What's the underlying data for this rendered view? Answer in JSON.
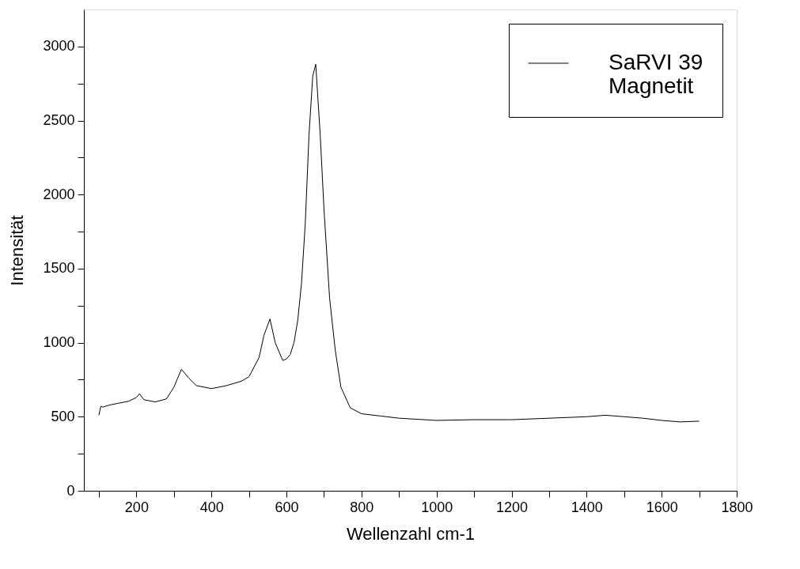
{
  "chart_data": {
    "type": "line",
    "xlabel": "Wellenzahl cm-1",
    "ylabel": "Intensität",
    "x": [
      100,
      105,
      110,
      130,
      150,
      180,
      200,
      208,
      220,
      250,
      280,
      300,
      320,
      340,
      360,
      400,
      440,
      480,
      500,
      527,
      540,
      556,
      570,
      590,
      600,
      610,
      620,
      630,
      640,
      650,
      660,
      670,
      678,
      690,
      700,
      715,
      730,
      745,
      770,
      800,
      850,
      900,
      1000,
      1100,
      1200,
      1300,
      1400,
      1450,
      1500,
      1550,
      1600,
      1650,
      1700
    ],
    "series": [
      {
        "name": "SaRVI 39\nMagnetit",
        "color": "#000000",
        "values": [
          510,
          570,
          565,
          580,
          590,
          605,
          630,
          655,
          615,
          600,
          620,
          700,
          820,
          760,
          710,
          690,
          710,
          740,
          770,
          900,
          1050,
          1160,
          1000,
          880,
          890,
          920,
          1000,
          1150,
          1400,
          1800,
          2400,
          2800,
          2880,
          2400,
          1900,
          1300,
          950,
          700,
          560,
          520,
          505,
          490,
          475,
          480,
          480,
          490,
          500,
          510,
          500,
          490,
          475,
          465,
          470
        ]
      }
    ],
    "xlim": [
      60,
      1800
    ],
    "xticks": [
      {
        "value": 100,
        "label": null
      },
      200,
      {
        "value": 300,
        "label": null
      },
      400,
      {
        "value": 500,
        "label": null
      },
      600,
      {
        "value": 700,
        "label": null
      },
      800,
      {
        "value": 900,
        "label": null
      },
      1000,
      {
        "value": 1100,
        "label": null
      },
      1200,
      {
        "value": 1300,
        "label": null
      },
      1400,
      {
        "value": 1500,
        "label": null
      },
      1600,
      {
        "value": 1700,
        "label": null
      },
      1800
    ],
    "ylim": [
      0,
      3250
    ],
    "yticks": [
      0,
      {
        "value": 250,
        "label": null
      },
      500,
      {
        "value": 750,
        "label": null
      },
      1000,
      {
        "value": 1250,
        "label": null
      },
      1500,
      {
        "value": 1750,
        "label": null
      },
      2000,
      {
        "value": 2250,
        "label": null
      },
      2500,
      {
        "value": 2750,
        "label": null
      },
      3000
    ],
    "legend": "top right",
    "grid": false,
    "marker": "none",
    "line_style": "solid"
  }
}
